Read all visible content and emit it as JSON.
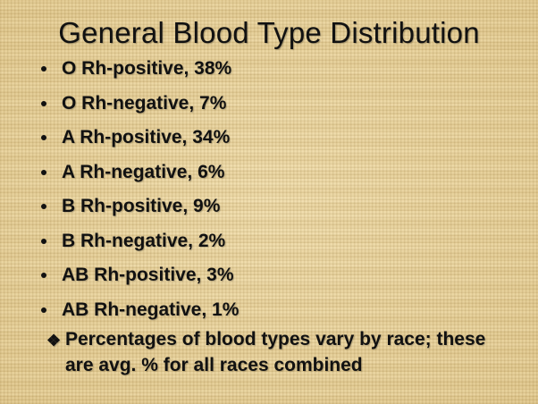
{
  "slide": {
    "title": "General Blood Type Distribution",
    "bullets": [
      "O Rh-positive, 38%",
      "O Rh-negative, 7%",
      "A Rh-positive, 34%",
      "A Rh-negative, 6%",
      "B Rh-positive, 9%",
      "B Rh-negative, 2%",
      "AB Rh-positive, 3%",
      "AB Rh-negative, 1%"
    ],
    "note": {
      "icon": "four-diamond-bullet-icon",
      "line1": "Percentages of blood types vary by race; these",
      "line2": "are avg. % for all races combined"
    }
  }
}
